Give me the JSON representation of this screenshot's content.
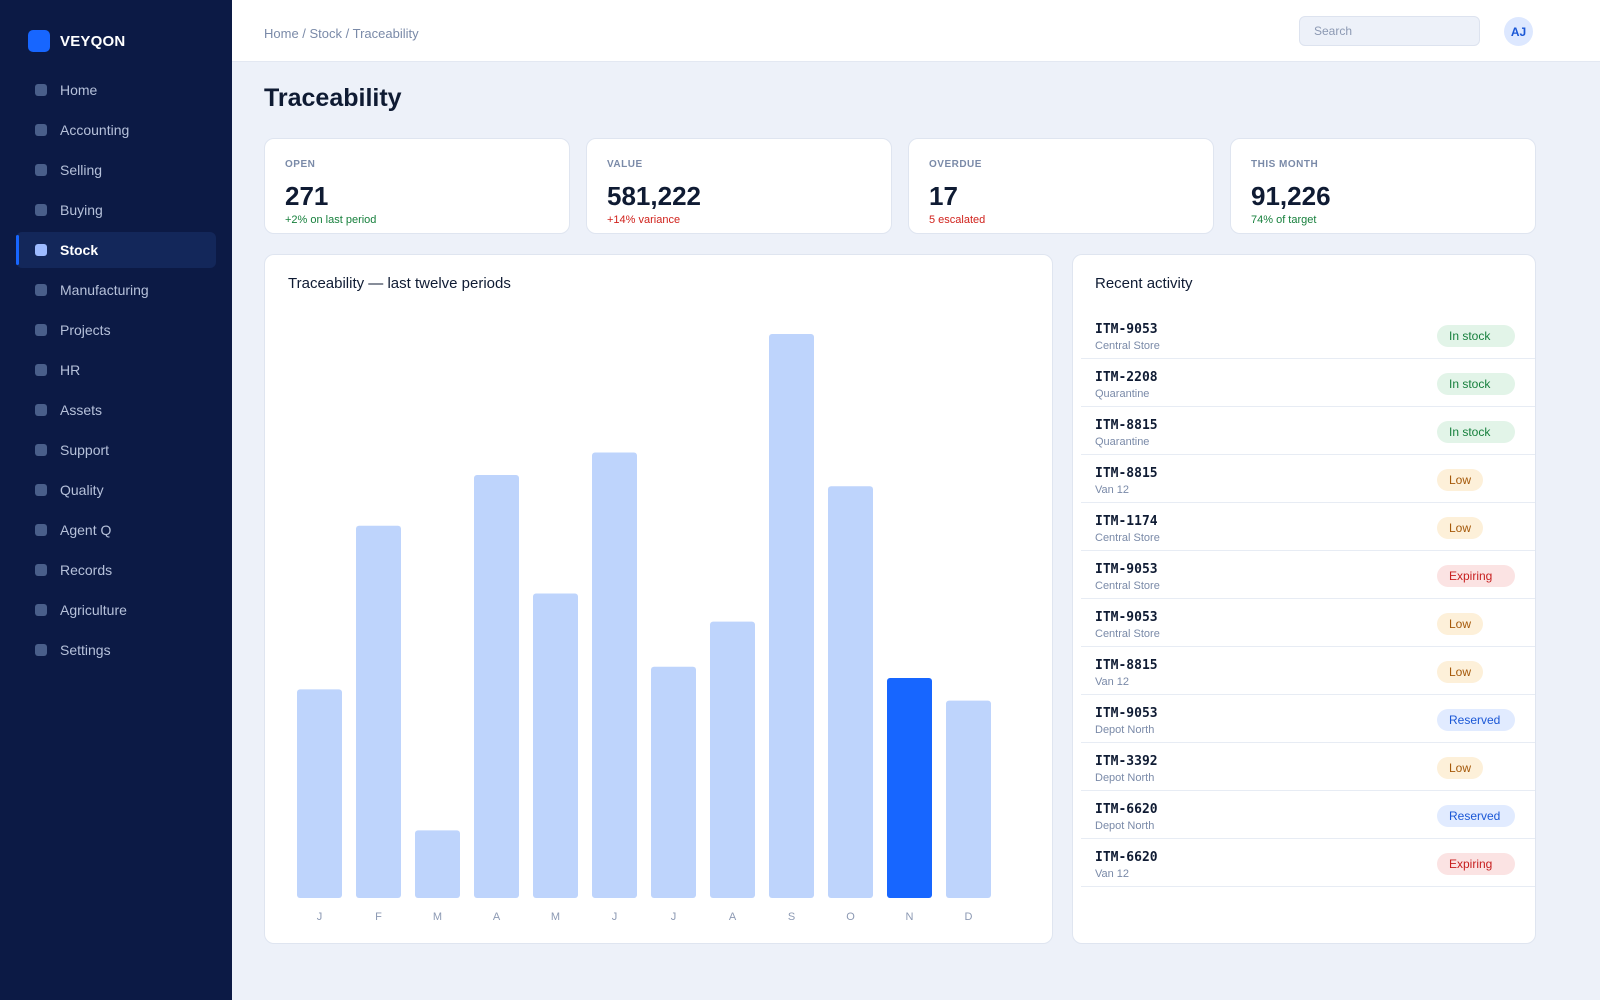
{
  "app": {
    "name": "VEYQON"
  },
  "sidebar": {
    "items": [
      {
        "label": "Home",
        "active": false
      },
      {
        "label": "Accounting",
        "active": false
      },
      {
        "label": "Selling",
        "active": false
      },
      {
        "label": "Buying",
        "active": false
      },
      {
        "label": "Stock",
        "active": true
      },
      {
        "label": "Manufacturing",
        "active": false
      },
      {
        "label": "Projects",
        "active": false
      },
      {
        "label": "HR",
        "active": false
      },
      {
        "label": "Assets",
        "active": false
      },
      {
        "label": "Support",
        "active": false
      },
      {
        "label": "Quality",
        "active": false
      },
      {
        "label": "Agent Q",
        "active": false
      },
      {
        "label": "Records",
        "active": false
      },
      {
        "label": "Agriculture",
        "active": false
      },
      {
        "label": "Settings",
        "active": false
      }
    ]
  },
  "header": {
    "breadcrumb": "Home / Stock / Traceability",
    "search_placeholder": "Search",
    "avatar_initials": "AJ"
  },
  "page": {
    "title": "Traceability"
  },
  "kpis": [
    {
      "label": "OPEN",
      "value": "271",
      "sub": "+2% on last period",
      "tone": "pos"
    },
    {
      "label": "VALUE",
      "value": "581,222",
      "sub": "+14% variance",
      "tone": "neg"
    },
    {
      "label": "OVERDUE",
      "value": "17",
      "sub": "5 escalated",
      "tone": "neg"
    },
    {
      "label": "THIS MONTH",
      "value": "91,226",
      "sub": "74% of target",
      "tone": "pos"
    }
  ],
  "colors": {
    "accent": "#1766ff",
    "bar": "#bed4fc",
    "bar_highlight": "#1766ff",
    "sidebar_bg": "#0c1a45",
    "page_bg": "#edf1f9",
    "status_in_stock": "#17803d",
    "status_low": "#a5590a",
    "status_expiring": "#c71f1f",
    "status_reserved": "#1a57d6"
  },
  "chart_data": {
    "type": "bar",
    "title": "Traceability — last twelve periods",
    "categories": [
      "J",
      "F",
      "M",
      "A",
      "M",
      "J",
      "J",
      "A",
      "S",
      "O",
      "N",
      "D"
    ],
    "values": [
      37,
      66,
      12,
      75,
      54,
      79,
      41,
      49,
      100,
      73,
      39,
      35
    ],
    "highlight_index": 10,
    "ylim": [
      0,
      100
    ],
    "grid": false,
    "legend": "none"
  },
  "activity": {
    "title": "Recent activity",
    "rows": [
      {
        "id": "ITM-9053",
        "location": "Central Store",
        "status": "In stock",
        "kind": "in"
      },
      {
        "id": "ITM-2208",
        "location": "Quarantine",
        "status": "In stock",
        "kind": "in"
      },
      {
        "id": "ITM-8815",
        "location": "Quarantine",
        "status": "In stock",
        "kind": "in"
      },
      {
        "id": "ITM-8815",
        "location": "Van 12",
        "status": "Low",
        "kind": "low"
      },
      {
        "id": "ITM-1174",
        "location": "Central Store",
        "status": "Low",
        "kind": "low"
      },
      {
        "id": "ITM-9053",
        "location": "Central Store",
        "status": "Expiring",
        "kind": "exp"
      },
      {
        "id": "ITM-9053",
        "location": "Central Store",
        "status": "Low",
        "kind": "low"
      },
      {
        "id": "ITM-8815",
        "location": "Van 12",
        "status": "Low",
        "kind": "low"
      },
      {
        "id": "ITM-9053",
        "location": "Depot North",
        "status": "Reserved",
        "kind": "res"
      },
      {
        "id": "ITM-3392",
        "location": "Depot North",
        "status": "Low",
        "kind": "low"
      },
      {
        "id": "ITM-6620",
        "location": "Depot North",
        "status": "Reserved",
        "kind": "res"
      },
      {
        "id": "ITM-6620",
        "location": "Van 12",
        "status": "Expiring",
        "kind": "exp"
      }
    ]
  }
}
